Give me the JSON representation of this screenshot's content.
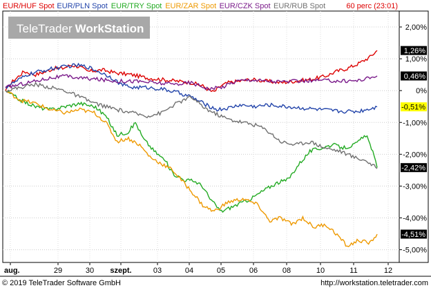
{
  "chart_data": {
    "type": "line",
    "brand": {
      "light": "TeleTrader",
      "bold": "WorkStation"
    },
    "period_label": "60 perc (23:01)",
    "x_ticks": [
      "aug.",
      "29",
      "30",
      "szept.",
      "03",
      "04",
      "05",
      "06",
      "08",
      "10",
      "11",
      "12"
    ],
    "y_ticks": [
      "2,00%",
      "1,00%",
      "0%",
      "-1,00%",
      "-2,00%",
      "-3,00%",
      "-4,00%",
      "-5,00%"
    ],
    "ylim": [
      -5.4,
      2.5
    ],
    "series": [
      {
        "name": "EUR/HUF Spot",
        "color": "#dd0000",
        "last_label": "1,26%",
        "last": 1.26,
        "badge_bg": "#000000",
        "badge_fg": "#ffffff",
        "values": [
          [
            0.0,
            0.0
          ],
          [
            0.02,
            0.3
          ],
          [
            0.05,
            0.6
          ],
          [
            0.08,
            0.5
          ],
          [
            0.11,
            0.6
          ],
          [
            0.13,
            0.7
          ],
          [
            0.155,
            0.7
          ],
          [
            0.175,
            0.8
          ],
          [
            0.2,
            0.75
          ],
          [
            0.22,
            0.6
          ],
          [
            0.26,
            0.65
          ],
          [
            0.3,
            0.55
          ],
          [
            0.34,
            0.5
          ],
          [
            0.38,
            0.4
          ],
          [
            0.42,
            0.35
          ],
          [
            0.46,
            0.3
          ],
          [
            0.5,
            0.25
          ],
          [
            0.53,
            0.15
          ],
          [
            0.55,
            0.0
          ],
          [
            0.56,
            -0.05
          ],
          [
            0.58,
            0.15
          ],
          [
            0.6,
            0.25
          ],
          [
            0.63,
            0.3
          ],
          [
            0.66,
            0.35
          ],
          [
            0.7,
            0.3
          ],
          [
            0.74,
            0.25
          ],
          [
            0.78,
            0.3
          ],
          [
            0.82,
            0.35
          ],
          [
            0.86,
            0.45
          ],
          [
            0.89,
            0.6
          ],
          [
            0.92,
            0.7
          ],
          [
            0.95,
            0.85
          ],
          [
            0.98,
            1.05
          ],
          [
            1.0,
            1.26
          ]
        ]
      },
      {
        "name": "EUR/PLN Spot",
        "color": "#2244aa",
        "last_label": "-0,51%",
        "last": -0.51,
        "badge_bg": "#ffff00",
        "badge_fg": "#000000",
        "values": [
          [
            0.0,
            0.1
          ],
          [
            0.03,
            0.3
          ],
          [
            0.06,
            0.5
          ],
          [
            0.09,
            0.6
          ],
          [
            0.13,
            0.7
          ],
          [
            0.16,
            0.75
          ],
          [
            0.19,
            0.8
          ],
          [
            0.22,
            0.75
          ],
          [
            0.25,
            0.6
          ],
          [
            0.28,
            0.45
          ],
          [
            0.31,
            0.2
          ],
          [
            0.34,
            0.1
          ],
          [
            0.38,
            0.1
          ],
          [
            0.42,
            0.05
          ],
          [
            0.46,
            -0.05
          ],
          [
            0.5,
            -0.2
          ],
          [
            0.54,
            -0.45
          ],
          [
            0.57,
            -0.6
          ],
          [
            0.6,
            -0.55
          ],
          [
            0.63,
            -0.45
          ],
          [
            0.67,
            -0.5
          ],
          [
            0.71,
            -0.45
          ],
          [
            0.75,
            -0.5
          ],
          [
            0.8,
            -0.55
          ],
          [
            0.85,
            -0.6
          ],
          [
            0.9,
            -0.65
          ],
          [
            0.95,
            -0.65
          ],
          [
            1.0,
            -0.51
          ]
        ]
      },
      {
        "name": "EUR/TRY Spot",
        "color": "#22aa22",
        "last_label": "-2,42%",
        "last": -2.42,
        "badge_bg": "#000000",
        "badge_fg": "#ffffff",
        "values": [
          [
            0.0,
            0.0
          ],
          [
            0.04,
            -0.3
          ],
          [
            0.08,
            -0.5
          ],
          [
            0.12,
            -0.6
          ],
          [
            0.16,
            -0.5
          ],
          [
            0.2,
            -0.4
          ],
          [
            0.24,
            -0.5
          ],
          [
            0.27,
            -0.8
          ],
          [
            0.3,
            -1.4
          ],
          [
            0.33,
            -1.3
          ],
          [
            0.35,
            -1.0
          ],
          [
            0.37,
            -1.5
          ],
          [
            0.4,
            -1.9
          ],
          [
            0.43,
            -2.2
          ],
          [
            0.45,
            -2.6
          ],
          [
            0.48,
            -2.8
          ],
          [
            0.51,
            -2.85
          ],
          [
            0.53,
            -3.0
          ],
          [
            0.55,
            -3.4
          ],
          [
            0.58,
            -3.8
          ],
          [
            0.62,
            -3.6
          ],
          [
            0.66,
            -3.4
          ],
          [
            0.7,
            -3.1
          ],
          [
            0.73,
            -2.9
          ],
          [
            0.76,
            -2.8
          ],
          [
            0.79,
            -2.3
          ],
          [
            0.82,
            -1.9
          ],
          [
            0.85,
            -1.8
          ],
          [
            0.88,
            -1.7
          ],
          [
            0.91,
            -1.8
          ],
          [
            0.94,
            -1.7
          ],
          [
            0.97,
            -1.4
          ],
          [
            0.985,
            -1.8
          ],
          [
            1.0,
            -2.42
          ]
        ]
      },
      {
        "name": "EUR/ZAR Spot",
        "color": "#ee9900",
        "last_label": "-4,51%",
        "last": -4.51,
        "badge_bg": "#000000",
        "badge_fg": "#ffffff",
        "values": [
          [
            0.0,
            0.0
          ],
          [
            0.04,
            -0.3
          ],
          [
            0.08,
            -0.4
          ],
          [
            0.12,
            -0.6
          ],
          [
            0.16,
            -0.7
          ],
          [
            0.2,
            -0.6
          ],
          [
            0.24,
            -0.7
          ],
          [
            0.27,
            -1.0
          ],
          [
            0.3,
            -1.6
          ],
          [
            0.33,
            -1.5
          ],
          [
            0.36,
            -1.7
          ],
          [
            0.39,
            -2.1
          ],
          [
            0.42,
            -2.3
          ],
          [
            0.45,
            -2.5
          ],
          [
            0.48,
            -2.9
          ],
          [
            0.51,
            -3.3
          ],
          [
            0.53,
            -3.6
          ],
          [
            0.56,
            -3.8
          ],
          [
            0.6,
            -3.5
          ],
          [
            0.64,
            -3.4
          ],
          [
            0.68,
            -3.6
          ],
          [
            0.71,
            -4.1
          ],
          [
            0.74,
            -4.0
          ],
          [
            0.77,
            -4.2
          ],
          [
            0.8,
            -4.0
          ],
          [
            0.83,
            -4.3
          ],
          [
            0.86,
            -4.2
          ],
          [
            0.89,
            -4.5
          ],
          [
            0.92,
            -4.9
          ],
          [
            0.95,
            -4.7
          ],
          [
            0.98,
            -4.8
          ],
          [
            1.0,
            -4.51
          ]
        ]
      },
      {
        "name": "EUR/CZK Spot",
        "color": "#7a1a8a",
        "last_label": "0,46%",
        "last": 0.46,
        "badge_bg": "#000000",
        "badge_fg": "#ffffff",
        "values": [
          [
            0.0,
            0.1
          ],
          [
            0.04,
            0.2
          ],
          [
            0.08,
            0.3
          ],
          [
            0.12,
            0.4
          ],
          [
            0.16,
            0.45
          ],
          [
            0.2,
            0.4
          ],
          [
            0.25,
            0.35
          ],
          [
            0.3,
            0.3
          ],
          [
            0.35,
            0.3
          ],
          [
            0.4,
            0.25
          ],
          [
            0.45,
            0.2
          ],
          [
            0.5,
            0.25
          ],
          [
            0.55,
            0.05
          ],
          [
            0.58,
            0.1
          ],
          [
            0.62,
            0.3
          ],
          [
            0.66,
            0.35
          ],
          [
            0.7,
            0.3
          ],
          [
            0.75,
            0.28
          ],
          [
            0.8,
            0.3
          ],
          [
            0.85,
            0.32
          ],
          [
            0.9,
            0.3
          ],
          [
            0.95,
            0.32
          ],
          [
            1.0,
            0.46
          ]
        ]
      },
      {
        "name": "EUR/RUB Spot",
        "color": "#707070",
        "last_label": "",
        "last": -2.45,
        "badge_bg": "#000000",
        "badge_fg": "#ffffff",
        "values": [
          [
            0.0,
            0.0
          ],
          [
            0.04,
            0.1
          ],
          [
            0.08,
            0.2
          ],
          [
            0.12,
            0.1
          ],
          [
            0.16,
            0.0
          ],
          [
            0.2,
            -0.2
          ],
          [
            0.24,
            -0.4
          ],
          [
            0.27,
            -0.5
          ],
          [
            0.3,
            -0.6
          ],
          [
            0.34,
            -0.7
          ],
          [
            0.38,
            -0.8
          ],
          [
            0.42,
            -0.7
          ],
          [
            0.46,
            -0.4
          ],
          [
            0.5,
            -0.2
          ],
          [
            0.53,
            -0.5
          ],
          [
            0.56,
            -0.7
          ],
          [
            0.6,
            -0.9
          ],
          [
            0.64,
            -1.0
          ],
          [
            0.68,
            -1.1
          ],
          [
            0.71,
            -1.3
          ],
          [
            0.74,
            -1.6
          ],
          [
            0.78,
            -1.7
          ],
          [
            0.82,
            -1.6
          ],
          [
            0.86,
            -1.8
          ],
          [
            0.9,
            -1.9
          ],
          [
            0.94,
            -2.1
          ],
          [
            0.97,
            -2.2
          ],
          [
            1.0,
            -2.45
          ]
        ]
      }
    ]
  },
  "footer": {
    "copyright": "© 2019 TeleTrader Software GmbH",
    "url": "http://workstation.teletrader.com"
  }
}
